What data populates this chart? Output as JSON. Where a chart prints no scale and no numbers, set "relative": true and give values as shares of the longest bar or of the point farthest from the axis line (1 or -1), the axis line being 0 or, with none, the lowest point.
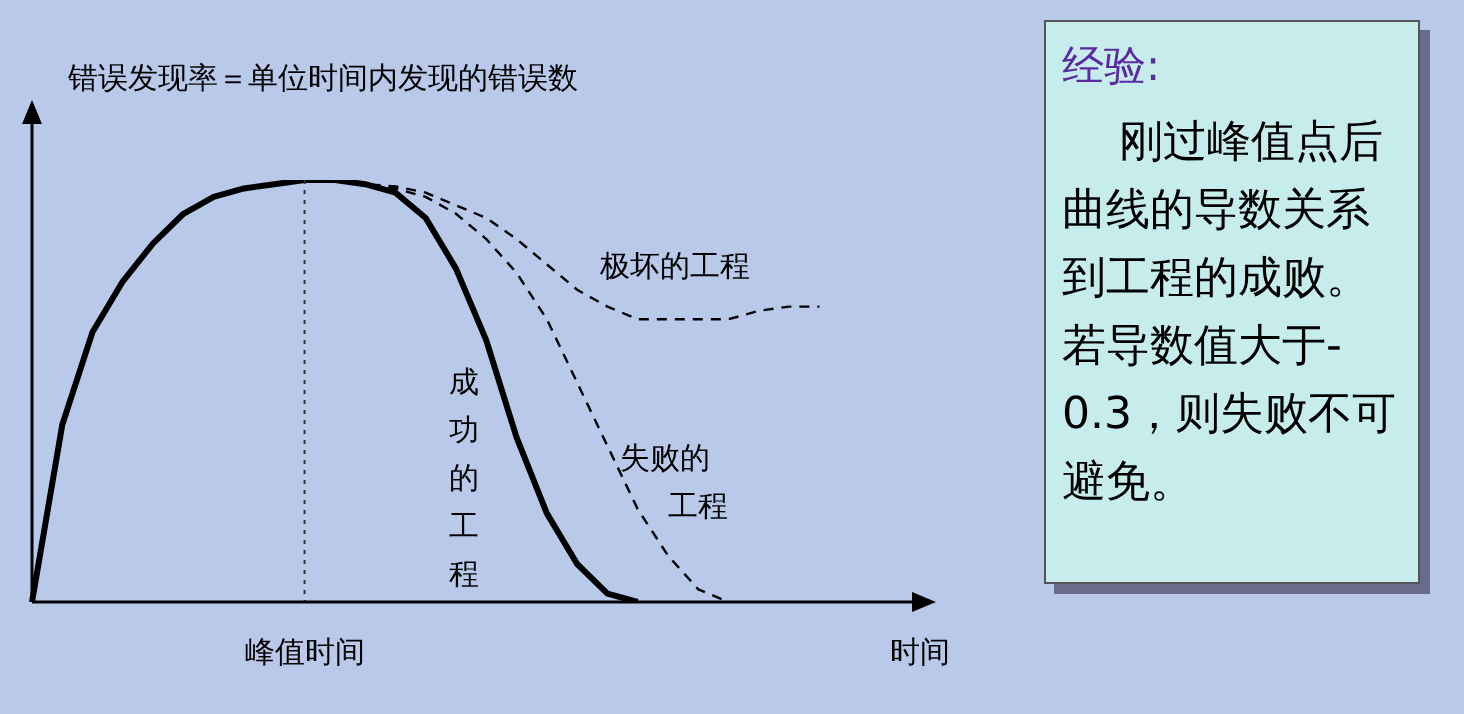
{
  "chart_data": {
    "type": "line",
    "relative": true,
    "ylabel": "错误发现率＝单位时间内发现的错误数",
    "xlabel": "时间",
    "categories": [
      null,
      null,
      null,
      null,
      null,
      null,
      null,
      null,
      null,
      null,
      null,
      null,
      null,
      null,
      null,
      null,
      null,
      null,
      null,
      null,
      null,
      null,
      null,
      null,
      null,
      null,
      null,
      null,
      null
    ],
    "series": [
      {
        "name": "成功的工程",
        "color": "#000000",
        "line_style": "solid",
        "values": [
          0,
          0.42,
          0.64,
          0.76,
          0.85,
          0.92,
          0.96,
          0.98,
          0.99,
          1,
          1,
          0.99,
          0.97,
          0.91,
          0.79,
          0.62,
          0.39,
          0.21,
          0.09,
          0.02,
          0,
          null,
          null,
          null,
          null,
          null,
          null,
          null,
          null
        ]
      },
      {
        "name": "失败的工程",
        "color": "#000000",
        "line_style": "dashed",
        "values": [
          null,
          null,
          null,
          null,
          null,
          null,
          null,
          null,
          null,
          null,
          1,
          0.99,
          0.98,
          0.96,
          0.92,
          0.86,
          0.78,
          0.67,
          0.52,
          0.37,
          0.22,
          0.11,
          0.03,
          0,
          null,
          null,
          null,
          null,
          null
        ]
      },
      {
        "name": "极坏的工程",
        "color": "#000000",
        "line_style": "dashed",
        "values": [
          null,
          null,
          null,
          null,
          null,
          null,
          null,
          null,
          null,
          null,
          1,
          0.99,
          0.985,
          0.97,
          0.94,
          0.91,
          0.86,
          0.8,
          0.74,
          0.7,
          0.67,
          0.67,
          0.67,
          0.67,
          0.69,
          0.7,
          0.7,
          null,
          null
        ]
      }
    ],
    "ref_lines": [
      {
        "axis": "x",
        "label": "峰值时间",
        "line_style": "dotted",
        "color": "#333333"
      }
    ],
    "marker": "none",
    "grid": false,
    "legend": false,
    "annotations": [
      "经验:",
      "刚过峰值点后曲线的导数关系到工程的成败。若导数值大于- 0.3，则失败不可避免。"
    ]
  }
}
